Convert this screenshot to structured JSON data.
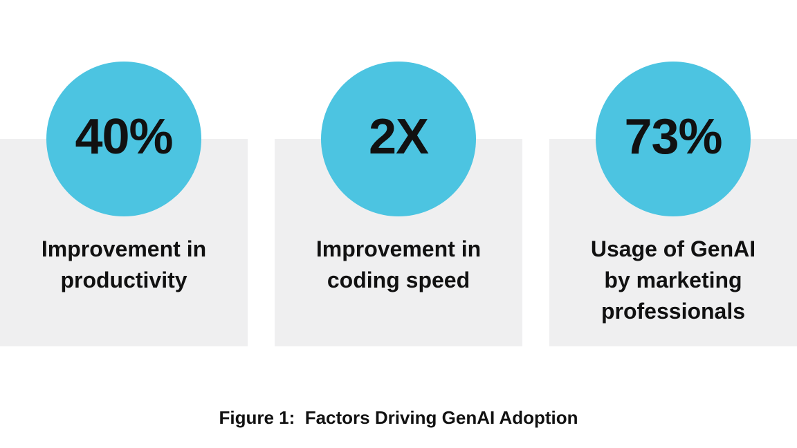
{
  "colors": {
    "page_bg": "#ffffff",
    "circle_fill": "#4CC4E1",
    "panel_fill": "#EFEFF0",
    "text": "#111111"
  },
  "stats": [
    {
      "value": "40%",
      "label": "Improvement in\nproductivity"
    },
    {
      "value": "2X",
      "label": "Improvement in\ncoding speed"
    },
    {
      "value": "73%",
      "label": "Usage of GenAI\nby marketing\nprofessionals"
    }
  ],
  "caption": "Figure 1:  Factors Driving GenAI Adoption"
}
